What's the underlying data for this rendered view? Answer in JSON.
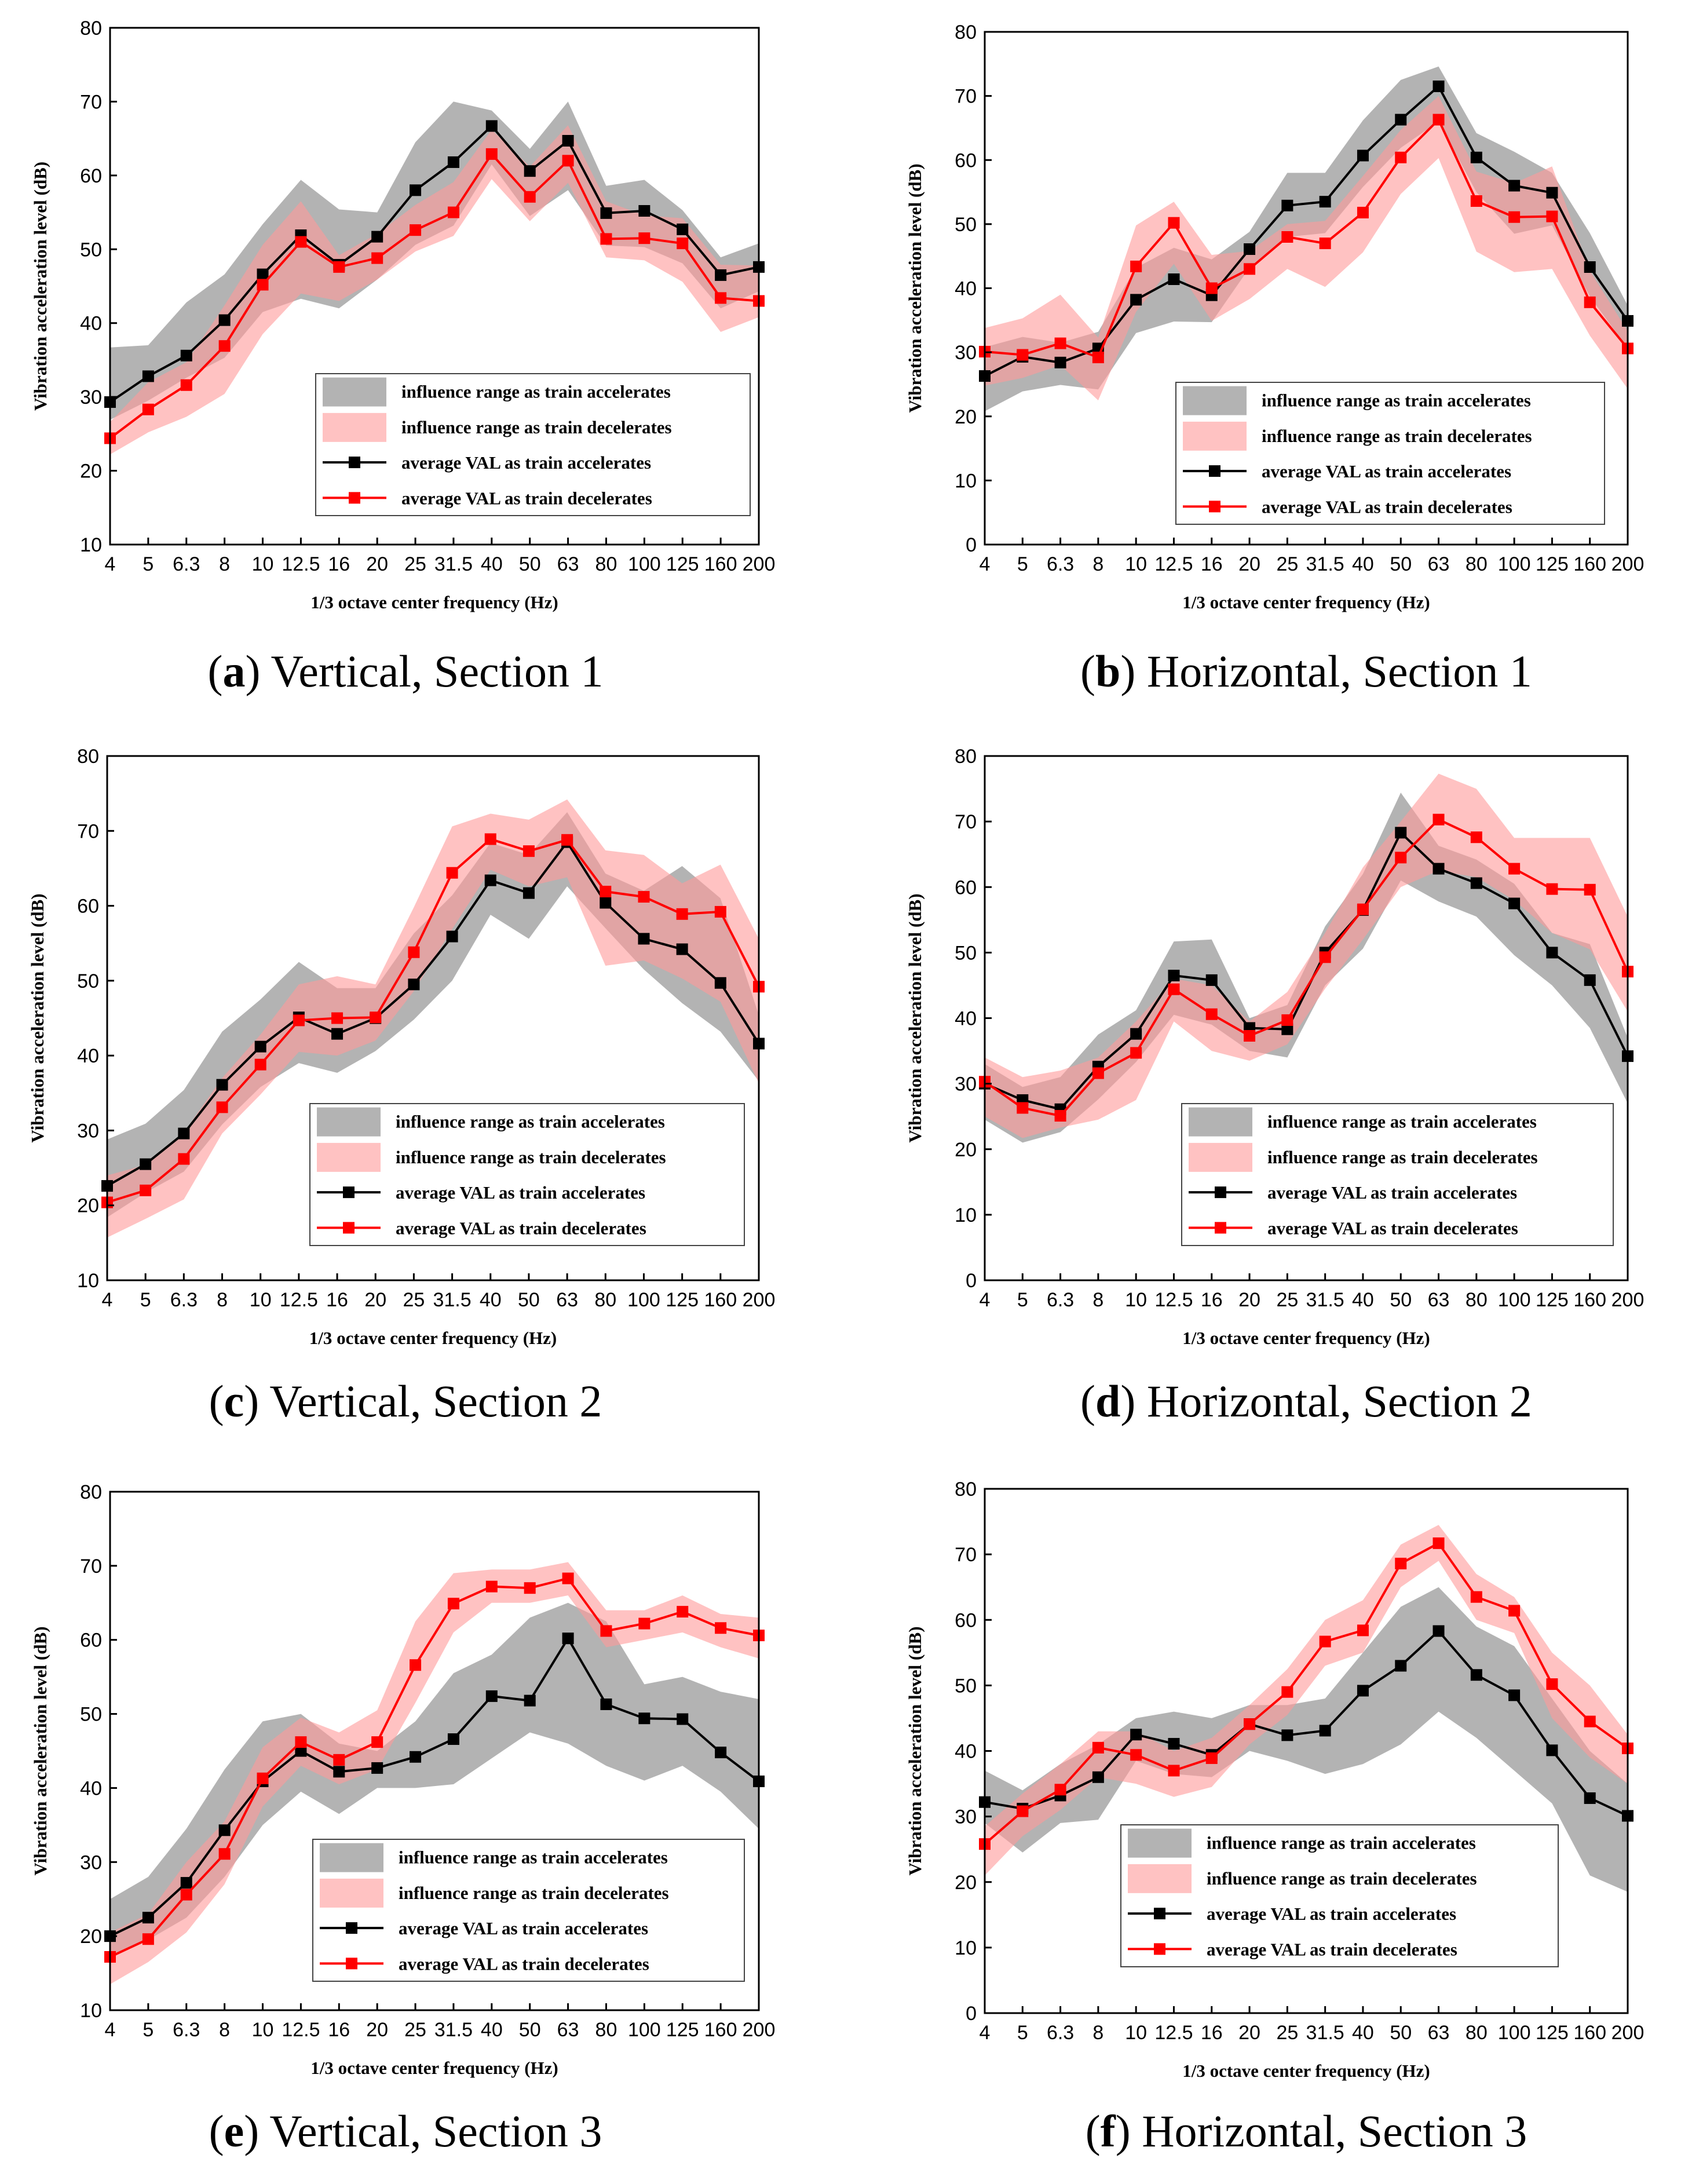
{
  "legend": {
    "accel_range": "influence range as train accelerates",
    "decel_range": "influence range as train decelerates",
    "accel_avg": "average VAL as train accelerates",
    "decel_avg": "average VAL as train decelerates"
  },
  "colors": {
    "accel_band": "#a6a6a6",
    "decel_band": "#ff9a9a",
    "accel_line": "#000000",
    "decel_line": "#ff0000"
  },
  "chart_data": [
    {
      "id": "a",
      "type": "line",
      "caption_letter": "a",
      "caption_text": " Vertical, Section 1",
      "xlabel": "1/3 octave center frequency (Hz)",
      "ylabel": "Vibration acceleration level (dB)",
      "categories": [
        "4",
        "5",
        "6.3",
        "8",
        "10",
        "12.5",
        "16",
        "20",
        "25",
        "31.5",
        "40",
        "50",
        "63",
        "80",
        "100",
        "125",
        "160",
        "200"
      ],
      "ylim": [
        10,
        80
      ],
      "yticks": [
        10,
        20,
        30,
        40,
        50,
        60,
        70,
        80
      ],
      "series": [
        {
          "name": "average VAL as train accelerates",
          "values": [
            29.3,
            32.8,
            35.6,
            40.4,
            46.6,
            51.9,
            47.9,
            51.7,
            58.0,
            61.8,
            66.7,
            60.6,
            64.7,
            54.9,
            55.2,
            52.7,
            46.5,
            47.6
          ]
        },
        {
          "name": "average VAL as train decelerates",
          "values": [
            24.4,
            28.3,
            31.6,
            36.9,
            45.2,
            51.0,
            47.6,
            48.8,
            52.6,
            55.0,
            62.9,
            57.1,
            62.0,
            51.4,
            51.5,
            50.8,
            43.4,
            43.0
          ]
        }
      ],
      "bands": [
        {
          "name": "influence range as train accelerates",
          "upper": [
            36.7,
            37.0,
            42.8,
            46.6,
            53.4,
            59.4,
            55.4,
            55.0,
            64.5,
            70.0,
            68.8,
            63.6,
            70.0,
            58.6,
            59.4,
            55.3,
            48.9,
            50.8
          ],
          "lower": [
            26.9,
            29.5,
            32.6,
            35.3,
            41.5,
            43.3,
            42.0,
            45.9,
            50.6,
            53.2,
            61.5,
            54.5,
            58.0,
            50.5,
            50.3,
            48.1,
            42.0,
            44.3
          ]
        },
        {
          "name": "influence range as train decelerates",
          "upper": [
            26.6,
            32.0,
            34.7,
            42.4,
            50.6,
            56.5,
            49.2,
            52.1,
            56.0,
            59.1,
            66.2,
            61.2,
            66.8,
            56.5,
            54.6,
            54.2,
            47.9,
            47.8
          ],
          "lower": [
            22.2,
            25.2,
            27.3,
            30.4,
            38.5,
            44.0,
            43.0,
            45.9,
            49.7,
            51.8,
            59.5,
            53.8,
            59.0,
            48.9,
            48.5,
            45.6,
            38.8,
            40.8
          ]
        }
      ]
    },
    {
      "id": "b",
      "type": "line",
      "caption_letter": "b",
      "caption_text": " Horizontal, Section 1",
      "xlabel": "1/3 octave center frequency (Hz)",
      "ylabel": "Vibration acceleration level (dB)",
      "categories": [
        "4",
        "5",
        "6.3",
        "8",
        "10",
        "12.5",
        "16",
        "20",
        "25",
        "31.5",
        "40",
        "50",
        "63",
        "80",
        "100",
        "125",
        "160",
        "200"
      ],
      "ylim": [
        0,
        80
      ],
      "yticks": [
        0,
        10,
        20,
        30,
        40,
        50,
        60,
        70,
        80
      ],
      "series": [
        {
          "name": "average VAL as train accelerates",
          "values": [
            26.3,
            29.3,
            28.4,
            30.6,
            38.2,
            41.4,
            38.9,
            46.1,
            52.9,
            53.5,
            60.7,
            66.3,
            71.5,
            60.4,
            56.0,
            54.9,
            43.3,
            34.9
          ]
        },
        {
          "name": "average VAL as train decelerates",
          "values": [
            30.1,
            29.6,
            31.4,
            29.2,
            43.4,
            50.2,
            40.0,
            43.0,
            48.0,
            47.0,
            51.8,
            60.4,
            66.3,
            53.6,
            51.1,
            51.2,
            37.8,
            30.6
          ]
        }
      ],
      "bands": [
        {
          "name": "influence range as train accelerates",
          "upper": [
            30.8,
            32.4,
            31.5,
            33.2,
            43.2,
            46.3,
            44.5,
            48.8,
            58.0,
            58.0,
            66.2,
            72.5,
            74.6,
            64.2,
            61.3,
            58.0,
            48.6,
            37.3
          ],
          "lower": [
            20.8,
            23.9,
            24.9,
            24.2,
            33.0,
            34.8,
            34.7,
            43.2,
            48.0,
            48.6,
            55.8,
            61.9,
            66.0,
            55.0,
            48.5,
            49.8,
            38.7,
            30.6
          ]
        },
        {
          "name": "influence range as train decelerates",
          "upper": [
            33.8,
            35.3,
            39.0,
            32.3,
            49.8,
            53.5,
            45.2,
            45.8,
            50.0,
            50.5,
            57.5,
            64.7,
            70.0,
            58.2,
            56.4,
            59.0,
            42.7,
            33.3
          ],
          "lower": [
            24.8,
            26.0,
            28.0,
            22.5,
            36.3,
            43.8,
            34.9,
            38.3,
            43.0,
            40.2,
            45.6,
            54.7,
            60.3,
            45.7,
            42.5,
            43.0,
            32.6,
            24.3
          ]
        }
      ]
    },
    {
      "id": "c",
      "type": "line",
      "caption_letter": "c",
      "caption_text": " Vertical, Section 2",
      "xlabel": "1/3 octave center frequency (Hz)",
      "ylabel": "Vibration acceleration level (dB)",
      "categories": [
        "4",
        "5",
        "6.3",
        "8",
        "10",
        "12.5",
        "16",
        "20",
        "25",
        "31.5",
        "40",
        "50",
        "63",
        "80",
        "100",
        "125",
        "160",
        "200"
      ],
      "ylim": [
        10,
        80
      ],
      "yticks": [
        10,
        20,
        30,
        40,
        50,
        60,
        70,
        80
      ],
      "series": [
        {
          "name": "average VAL as train accelerates",
          "values": [
            22.6,
            25.5,
            29.6,
            36.1,
            41.2,
            45.1,
            42.9,
            45.0,
            49.5,
            55.9,
            63.4,
            61.7,
            68.5,
            60.4,
            55.6,
            54.2,
            49.7,
            41.6
          ]
        },
        {
          "name": "average VAL as train decelerates",
          "values": [
            20.4,
            22.0,
            26.2,
            33.1,
            38.8,
            44.7,
            45.0,
            45.1,
            53.8,
            64.4,
            68.9,
            67.3,
            68.8,
            61.9,
            61.2,
            58.9,
            59.2,
            49.2
          ]
        }
      ],
      "bands": [
        {
          "name": "influence range as train accelerates",
          "upper": [
            28.8,
            30.9,
            35.4,
            43.2,
            47.5,
            52.5,
            49.0,
            49.0,
            56.3,
            61.4,
            68.4,
            66.8,
            72.5,
            64.3,
            62.0,
            65.3,
            61.0,
            45.4
          ],
          "lower": [
            18.4,
            21.7,
            24.5,
            30.8,
            35.8,
            39.0,
            37.7,
            40.6,
            44.8,
            50.0,
            58.8,
            55.6,
            62.6,
            57.0,
            51.5,
            47.0,
            43.2,
            36.6
          ]
        },
        {
          "name": "influence range as train decelerates",
          "upper": [
            24.0,
            25.4,
            29.7,
            37.0,
            42.8,
            49.5,
            50.6,
            49.5,
            59.8,
            70.6,
            72.3,
            71.5,
            74.2,
            67.4,
            66.8,
            63.0,
            65.5,
            55.6
          ],
          "lower": [
            15.7,
            18.2,
            20.8,
            29.6,
            34.8,
            40.5,
            40.0,
            42.0,
            48.6,
            56.9,
            64.8,
            62.6,
            63.8,
            52.0,
            52.7,
            50.3,
            47.2,
            36.3
          ]
        }
      ]
    },
    {
      "id": "d",
      "type": "line",
      "caption_letter": "d",
      "caption_text": " Horizontal, Section 2",
      "xlabel": "1/3 octave center frequency (Hz)",
      "ylabel": "Vibration acceleration level (dB)",
      "categories": [
        "4",
        "5",
        "6.3",
        "8",
        "10",
        "12.5",
        "16",
        "20",
        "25",
        "31.5",
        "40",
        "50",
        "63",
        "80",
        "100",
        "125",
        "160",
        "200"
      ],
      "ylim": [
        0,
        80
      ],
      "yticks": [
        0,
        10,
        20,
        30,
        40,
        50,
        60,
        70,
        80
      ],
      "series": [
        {
          "name": "average VAL as train accelerates",
          "values": [
            30.0,
            27.5,
            26.1,
            32.6,
            37.6,
            46.5,
            45.8,
            38.5,
            38.3,
            50.0,
            56.5,
            68.3,
            62.8,
            60.6,
            57.5,
            50.0,
            45.8,
            34.2
          ]
        },
        {
          "name": "average VAL as train decelerates",
          "values": [
            30.3,
            26.3,
            25.1,
            31.6,
            34.7,
            44.4,
            40.6,
            37.3,
            39.7,
            49.3,
            56.6,
            64.5,
            70.3,
            67.6,
            62.8,
            59.7,
            59.6,
            47.1
          ]
        }
      ],
      "bands": [
        {
          "name": "influence range as train accelerates",
          "upper": [
            33.0,
            29.5,
            31.0,
            37.5,
            41.2,
            51.7,
            52.0,
            40.0,
            42.0,
            54.0,
            62.0,
            74.4,
            66.3,
            64.2,
            60.5,
            53.0,
            51.3,
            37.0
          ],
          "lower": [
            24.5,
            21.0,
            22.6,
            27.6,
            33.3,
            40.5,
            39.0,
            35.0,
            34.0,
            45.0,
            50.6,
            61.0,
            57.8,
            55.5,
            49.6,
            45.0,
            38.5,
            27.0
          ]
        },
        {
          "name": "influence range as train decelerates",
          "upper": [
            34.0,
            31.0,
            32.0,
            34.0,
            39.5,
            46.0,
            45.0,
            39.5,
            44.0,
            53.0,
            63.0,
            70.0,
            77.3,
            75.0,
            67.5,
            67.5,
            67.5,
            55.5
          ],
          "lower": [
            25.0,
            21.7,
            23.3,
            24.5,
            27.5,
            39.5,
            35.0,
            33.5,
            36.0,
            44.5,
            52.0,
            60.0,
            62.5,
            61.5,
            58.0,
            53.0,
            50.5,
            41.0
          ]
        }
      ]
    },
    {
      "id": "e",
      "type": "line",
      "caption_letter": "e",
      "caption_text": " Vertical, Section 3",
      "xlabel": "1/3 octave center frequency (Hz)",
      "ylabel": "Vibration acceleration level (dB)",
      "categories": [
        "4",
        "5",
        "6.3",
        "8",
        "10",
        "12.5",
        "16",
        "20",
        "25",
        "31.5",
        "40",
        "50",
        "63",
        "80",
        "100",
        "125",
        "160",
        "200"
      ],
      "ylim": [
        10,
        80
      ],
      "yticks": [
        10,
        20,
        30,
        40,
        50,
        60,
        70,
        80
      ],
      "series": [
        {
          "name": "average VAL as train accelerates",
          "values": [
            20.0,
            22.5,
            27.2,
            34.3,
            40.9,
            45.0,
            42.2,
            42.7,
            44.2,
            46.6,
            52.4,
            51.8,
            60.2,
            51.3,
            49.4,
            49.3,
            44.8,
            40.9
          ]
        },
        {
          "name": "average VAL as train decelerates",
          "values": [
            17.2,
            19.6,
            25.6,
            31.1,
            41.3,
            46.2,
            43.8,
            46.2,
            56.6,
            64.9,
            67.2,
            67.0,
            68.3,
            61.2,
            62.2,
            63.8,
            61.6,
            60.6
          ]
        }
      ],
      "bands": [
        {
          "name": "influence range as train accelerates",
          "upper": [
            25.0,
            28.0,
            34.5,
            42.5,
            49.0,
            50.0,
            46.0,
            45.0,
            49.0,
            55.5,
            58.0,
            63.0,
            65.0,
            62.5,
            54.0,
            55.0,
            53.0,
            52.0
          ],
          "lower": [
            17.0,
            19.5,
            22.5,
            28.0,
            35.0,
            39.5,
            36.5,
            40.0,
            40.0,
            40.5,
            44.0,
            47.5,
            46.0,
            43.0,
            41.0,
            43.0,
            39.5,
            34.5
          ]
        },
        {
          "name": "influence range as train decelerates",
          "upper": [
            20.5,
            23.0,
            30.0,
            35.5,
            45.5,
            49.5,
            47.5,
            50.5,
            62.5,
            69.0,
            69.5,
            69.5,
            70.5,
            64.0,
            64.0,
            66.0,
            63.5,
            63.0
          ],
          "lower": [
            13.5,
            16.5,
            20.5,
            27.0,
            37.5,
            43.0,
            40.5,
            42.5,
            51.5,
            61.0,
            65.0,
            65.0,
            66.0,
            59.0,
            60.0,
            61.0,
            59.0,
            57.5
          ]
        }
      ]
    },
    {
      "id": "f",
      "type": "line",
      "caption_letter": "f",
      "caption_text": " Horizontal, Section 3",
      "xlabel": "1/3 octave center frequency (Hz)",
      "ylabel": "Vibration acceleration level (dB)",
      "categories": [
        "4",
        "5",
        "6.3",
        "8",
        "10",
        "12.5",
        "16",
        "20",
        "25",
        "31.5",
        "40",
        "50",
        "63",
        "80",
        "100",
        "125",
        "160",
        "200"
      ],
      "ylim": [
        0,
        80
      ],
      "yticks": [
        0,
        10,
        20,
        30,
        40,
        50,
        60,
        70,
        80
      ],
      "series": [
        {
          "name": "average VAL as train accelerates",
          "values": [
            32.2,
            31.2,
            33.2,
            36.0,
            42.5,
            41.1,
            39.4,
            44.1,
            42.4,
            43.1,
            49.2,
            53.0,
            58.3,
            51.6,
            48.5,
            40.1,
            32.8,
            30.1
          ]
        },
        {
          "name": "average VAL as train decelerates",
          "values": [
            25.8,
            30.8,
            34.1,
            40.5,
            39.4,
            37.0,
            38.9,
            44.1,
            49.0,
            56.7,
            58.4,
            68.6,
            71.7,
            63.5,
            61.4,
            50.2,
            44.5,
            40.4
          ]
        }
      ],
      "bands": [
        {
          "name": "influence range as train accelerates",
          "upper": [
            37.0,
            34.0,
            38.0,
            41.0,
            45.0,
            46.0,
            45.0,
            47.0,
            47.0,
            48.0,
            55.0,
            62.0,
            65.0,
            59.0,
            56.0,
            48.0,
            40.0,
            35.0
          ],
          "lower": [
            29.0,
            24.5,
            29.0,
            29.5,
            38.5,
            36.5,
            36.0,
            40.0,
            38.5,
            36.5,
            38.0,
            41.0,
            46.0,
            42.0,
            37.0,
            32.0,
            21.0,
            18.5
          ]
        },
        {
          "name": "influence range as train decelerates",
          "upper": [
            28.5,
            33.5,
            38.0,
            43.0,
            43.0,
            40.0,
            42.0,
            47.0,
            52.5,
            60.0,
            63.0,
            71.5,
            74.5,
            67.0,
            63.5,
            55.0,
            50.0,
            42.5
          ],
          "lower": [
            21.0,
            27.0,
            31.0,
            36.0,
            35.0,
            33.0,
            34.5,
            41.0,
            45.5,
            53.0,
            55.0,
            65.0,
            69.0,
            60.0,
            58.0,
            45.0,
            39.0,
            35.0
          ]
        }
      ]
    }
  ]
}
